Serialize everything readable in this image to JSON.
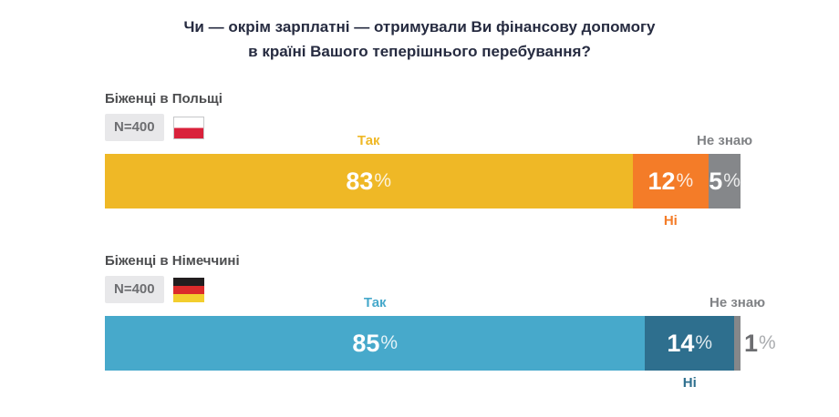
{
  "chart_data": {
    "type": "bar",
    "variant": "horizontal-stacked",
    "unit": "%",
    "percent_suffix": "%",
    "title": "Чи — окрім зарплатні — отримували Ви фінансову допомогу в країні Вашого теперішнього перебування?",
    "title_lines": [
      "Чи — окрім зарплатні — отримували Ви фінансову допомогу",
      "в країні Вашого теперішнього перебування?"
    ],
    "title_color": "#262B40",
    "categories": [
      "Так",
      "Ні",
      "Не знаю"
    ],
    "xlim": [
      0,
      100
    ],
    "legend_position": "around-bars",
    "grid": false,
    "groups": [
      {
        "label": "Біженці в Польщі",
        "n_label": "N=400",
        "flag": "poland",
        "series": [
          {
            "name": "Так",
            "value": 83,
            "color": "#EFB826",
            "label_color": "#EFB826"
          },
          {
            "name": "Ні",
            "value": 12,
            "color": "#F47C28",
            "label_color": "#F47C28"
          },
          {
            "name": "Не знаю",
            "value": 5,
            "color": "#85878A",
            "label_color": "#808285"
          }
        ]
      },
      {
        "label": "Біженці в Німеччині",
        "n_label": "N=400",
        "flag": "germany",
        "series": [
          {
            "name": "Так",
            "value": 85,
            "color": "#47A9CB",
            "label_color": "#47A9CB"
          },
          {
            "name": "Ні",
            "value": 14,
            "color": "#2E6F8E",
            "label_color": "#2E6F8E"
          },
          {
            "name": "Не знаю",
            "value": 1,
            "color": "#85878A",
            "label_color": "#808285"
          }
        ]
      }
    ],
    "outside_value_color": "#6D6E71",
    "badge_background": "#E8E8EA",
    "badge_text_color": "#6D6E71"
  }
}
